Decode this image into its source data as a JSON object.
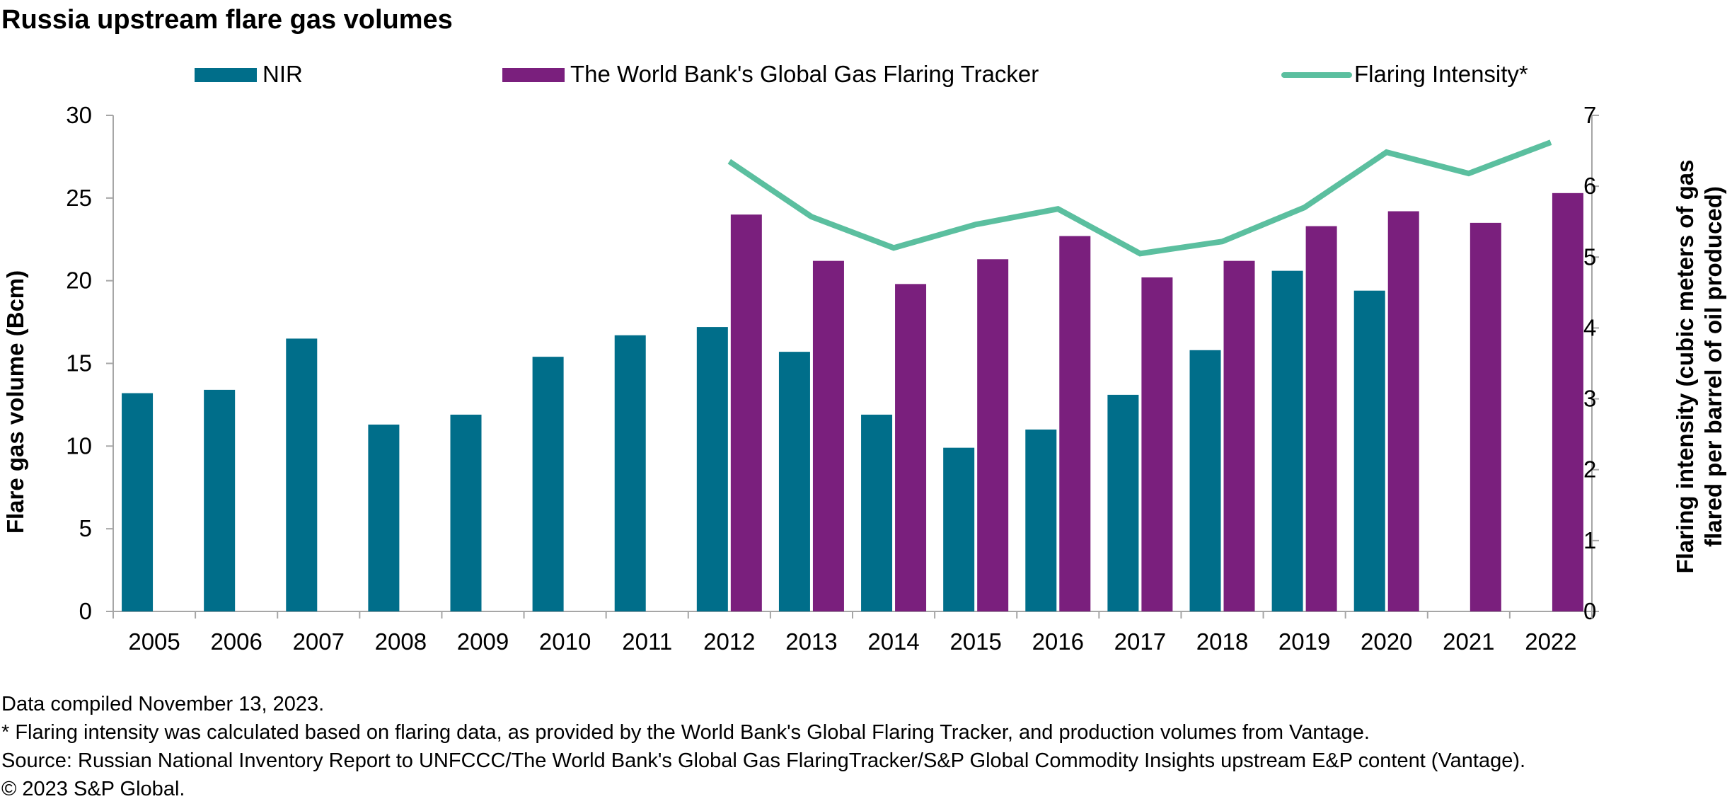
{
  "chart_data": {
    "type": "bar",
    "title": "Russia upstream flare gas volumes",
    "categories": [
      "2005",
      "2006",
      "2007",
      "2008",
      "2009",
      "2010",
      "2011",
      "2012",
      "2013",
      "2014",
      "2015",
      "2016",
      "2017",
      "2018",
      "2019",
      "2020",
      "2021",
      "2022"
    ],
    "series": [
      {
        "name": "NIR",
        "type": "bar",
        "axis": "left",
        "color": "#006e8a",
        "values": [
          13.2,
          13.4,
          16.5,
          11.3,
          11.9,
          15.4,
          16.7,
          17.2,
          15.7,
          11.9,
          9.9,
          11.0,
          13.1,
          15.8,
          20.6,
          19.4,
          null,
          null
        ]
      },
      {
        "name": "The World Bank's Global Gas Flaring Tracker",
        "type": "bar",
        "axis": "left",
        "color": "#7a1f7d",
        "values": [
          null,
          null,
          null,
          null,
          null,
          null,
          null,
          24.0,
          21.2,
          19.8,
          21.3,
          22.7,
          20.2,
          21.2,
          23.3,
          24.2,
          23.5,
          25.3
        ]
      },
      {
        "name": "Flaring Intensity*",
        "type": "line",
        "axis": "right",
        "color": "#5bbf9f",
        "values": [
          null,
          null,
          null,
          null,
          null,
          null,
          null,
          6.35,
          5.57,
          5.13,
          5.46,
          5.68,
          5.05,
          5.22,
          5.7,
          6.48,
          6.18,
          6.62
        ]
      }
    ],
    "yaxis_left": {
      "label": "Flare gas volume (Bcm)",
      "min": 0,
      "max": 30,
      "ticks": [
        "0",
        "5",
        "10",
        "15",
        "20",
        "25",
        "30"
      ]
    },
    "yaxis_right": {
      "label_line1": "Flaring intensity (cubic meters of gas",
      "label_line2": "flared per barrel of oil produced)",
      "min": 0,
      "max": 7,
      "ticks": [
        "0",
        "1",
        "2",
        "3",
        "4",
        "5",
        "6",
        "7"
      ]
    },
    "grid": false,
    "legend_position": "top"
  },
  "notes": {
    "compiled": "Data compiled November 13, 2023.",
    "footnote": "* Flaring intensity was calculated based on flaring data, as provided by the World Bank's Global Flaring Tracker, and production volumes from Vantage.",
    "source": "Source: Russian National Inventory Report to UNFCCC/The World Bank's Global Gas FlaringTracker/S&P Global Commodity Insights upstream E&P content (Vantage).",
    "copyright": "© 2023 S&P Global."
  }
}
